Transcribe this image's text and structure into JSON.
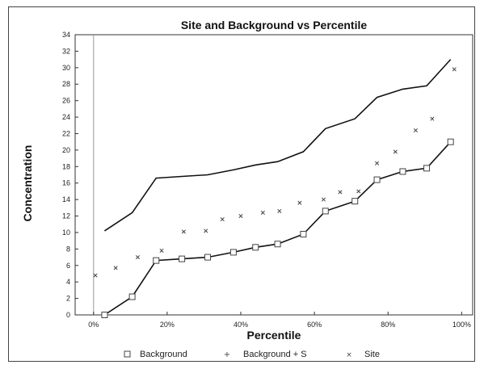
{
  "chart_data": {
    "type": "line",
    "title": "Site and Background vs Percentile",
    "xlabel": "Percentile",
    "ylabel": "Concentration",
    "xlim": [
      -5,
      103
    ],
    "ylim": [
      0,
      34
    ],
    "x_ticks": [
      "0%",
      "20%",
      "40%",
      "60%",
      "80%",
      "100%"
    ],
    "x_tick_values": [
      0,
      20,
      40,
      60,
      80,
      100
    ],
    "y_ticks": [
      "0",
      "2",
      "4",
      "6",
      "8",
      "10",
      "12",
      "14",
      "16",
      "18",
      "20",
      "22",
      "24",
      "26",
      "28",
      "30",
      "32",
      "34"
    ],
    "grid": false,
    "legend_position": "bottom",
    "series": [
      {
        "name": "Background",
        "marker": "square",
        "style": "line+marker",
        "x": [
          3,
          10.5,
          17,
          24,
          31,
          38,
          44,
          50,
          57,
          63,
          71,
          77,
          84,
          90.5,
          97
        ],
        "y": [
          0,
          2.2,
          6.6,
          6.8,
          7.0,
          7.6,
          8.2,
          8.6,
          9.8,
          12.6,
          13.8,
          16.4,
          17.4,
          17.8,
          21.0
        ]
      },
      {
        "name": "Background + S",
        "marker": "plus",
        "style": "line",
        "x": [
          3,
          10.5,
          17,
          24,
          31,
          38,
          44,
          50,
          57,
          63,
          71,
          77,
          84,
          90.5,
          97
        ],
        "y": [
          10.2,
          12.4,
          16.6,
          16.8,
          17.0,
          17.6,
          18.2,
          18.6,
          19.8,
          22.6,
          23.8,
          26.4,
          27.4,
          27.8,
          31.0
        ]
      },
      {
        "name": "Site",
        "marker": "x",
        "style": "marker",
        "x": [
          0.5,
          6,
          12,
          18.5,
          24.5,
          30.5,
          35,
          40,
          46,
          50.5,
          56,
          62.5,
          67,
          72,
          77,
          82,
          87.5,
          92,
          98
        ],
        "y": [
          4.8,
          5.7,
          7.0,
          7.8,
          10.1,
          10.2,
          11.6,
          12.0,
          12.4,
          12.6,
          13.6,
          14.0,
          14.9,
          15.0,
          18.4,
          19.8,
          22.4,
          23.8,
          29.8
        ]
      }
    ],
    "colors": {
      "line": "#111111",
      "marker": "#444444",
      "axis": "#333333"
    }
  }
}
